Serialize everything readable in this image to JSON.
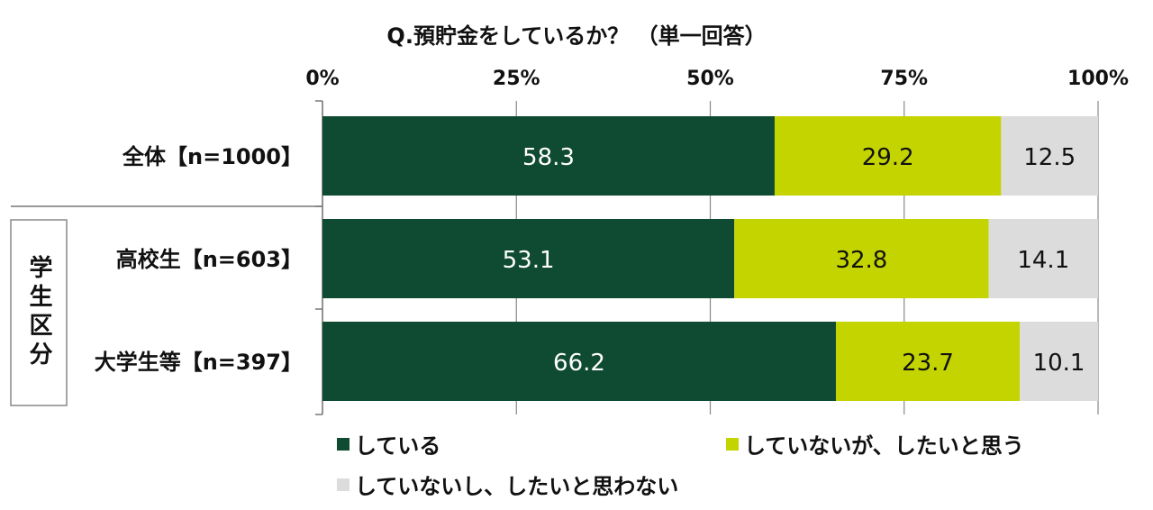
{
  "chart_data": {
    "type": "bar",
    "orientation": "horizontal",
    "stacked": true,
    "title": "Q.預貯金をしているか？ （単一回答）",
    "x_ticks": [
      "0%",
      "25%",
      "50%",
      "75%",
      "100%"
    ],
    "xlim": [
      0,
      100
    ],
    "group_label": "学生区分",
    "categories": [
      "全体【n=1000】",
      "高校生【n=603】",
      "大学生等【n=397】"
    ],
    "series": [
      {
        "name": "している",
        "values": [
          58.3,
          53.1,
          66.2
        ],
        "value_labels": [
          "58.3",
          "53.1",
          "66.2"
        ],
        "color": "#0f4a33",
        "label_color": "#ffffff"
      },
      {
        "name": "していないが、したいと思う",
        "values": [
          29.2,
          32.8,
          23.7
        ],
        "value_labels": [
          "29.2",
          "32.8",
          "23.7"
        ],
        "color": "#c3d400",
        "label_color": "#111111"
      },
      {
        "name": "していないし、したいと思わない",
        "values": [
          12.5,
          14.1,
          10.1
        ],
        "value_labels": [
          "12.5",
          "14.1",
          "10.1"
        ],
        "color": "#dcdcdc",
        "label_color": "#111111"
      }
    ],
    "grid": true,
    "legend_position": "bottom"
  }
}
